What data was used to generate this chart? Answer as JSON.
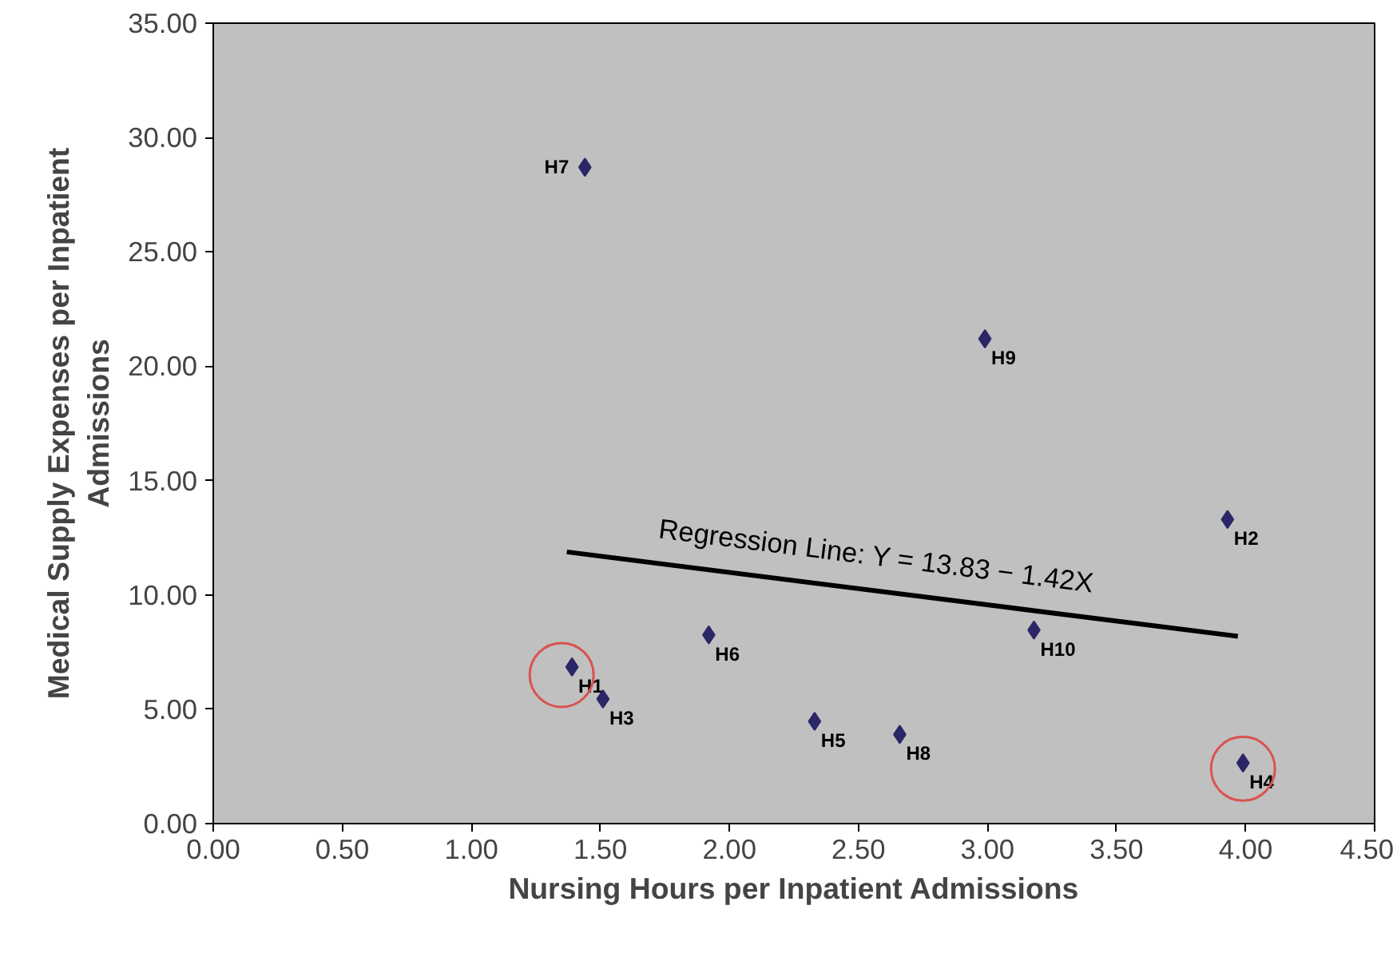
{
  "chart_data": {
    "type": "scatter",
    "xlabel": "Nursing Hours per Inpatient Admissions",
    "ylabel": "Medical Supply Expenses per Inpatient\nAdmissions",
    "xlim": [
      0,
      4.5
    ],
    "ylim": [
      0,
      35
    ],
    "xticks": [
      {
        "value": 0,
        "label": "0.00"
      },
      {
        "value": 0.5,
        "label": "0.50"
      },
      {
        "value": 1,
        "label": "1.00"
      },
      {
        "value": 1.5,
        "label": "1.50"
      },
      {
        "value": 2,
        "label": "2.00"
      },
      {
        "value": 2.5,
        "label": "2.50"
      },
      {
        "value": 3,
        "label": "3.00"
      },
      {
        "value": 3.5,
        "label": "3.50"
      },
      {
        "value": 4,
        "label": "4.00"
      },
      {
        "value": 4.5,
        "label": "4.50"
      }
    ],
    "yticks": [
      {
        "value": 0,
        "label": "0.00"
      },
      {
        "value": 5,
        "label": "5.00"
      },
      {
        "value": 10,
        "label": "10.00"
      },
      {
        "value": 15,
        "label": "15.00"
      },
      {
        "value": 20,
        "label": "20.00"
      },
      {
        "value": 25,
        "label": "25.00"
      },
      {
        "value": 30,
        "label": "30.00"
      },
      {
        "value": 35,
        "label": "35.00"
      }
    ],
    "grid": false,
    "series": [
      {
        "marker": "diamond",
        "color": "#2b2666",
        "x": [
          1.39,
          3.93,
          1.51,
          3.99,
          2.33,
          1.92,
          1.44,
          2.66,
          2.99,
          3.18
        ],
        "values": [
          6.85,
          13.3,
          5.45,
          2.65,
          4.47,
          8.25,
          28.7,
          3.9,
          21.2,
          8.46
        ]
      },
      {
        "marker": "circle",
        "color": "#d9534f",
        "x": [
          1.35,
          3.99
        ],
        "values": [
          6.5,
          2.4
        ]
      },
      {
        "type": "line",
        "line_style": "solid",
        "color": "#000000",
        "x": [
          1.37,
          3.97
        ],
        "values": [
          11.88,
          8.19
        ]
      }
    ],
    "annotations": [
      {
        "text": "H1",
        "x": 1.39,
        "y": 6.85
      },
      {
        "text": "H2",
        "x": 3.93,
        "y": 13.3
      },
      {
        "text": "H3",
        "x": 1.51,
        "y": 5.45
      },
      {
        "text": "H4",
        "x": 3.99,
        "y": 2.65
      },
      {
        "text": "H5",
        "x": 2.33,
        "y": 4.47
      },
      {
        "text": "H6",
        "x": 1.92,
        "y": 8.25
      },
      {
        "text": "H7",
        "x": 1.44,
        "y": 28.7
      },
      {
        "text": "H8",
        "x": 2.66,
        "y": 3.9
      },
      {
        "text": "H9",
        "x": 2.99,
        "y": 21.2
      },
      {
        "text": "H10",
        "x": 3.18,
        "y": 8.46
      },
      {
        "text": "Regression Line: Y = 13.83 − 1.42X",
        "x": 2.57,
        "y": 10.18
      }
    ]
  }
}
